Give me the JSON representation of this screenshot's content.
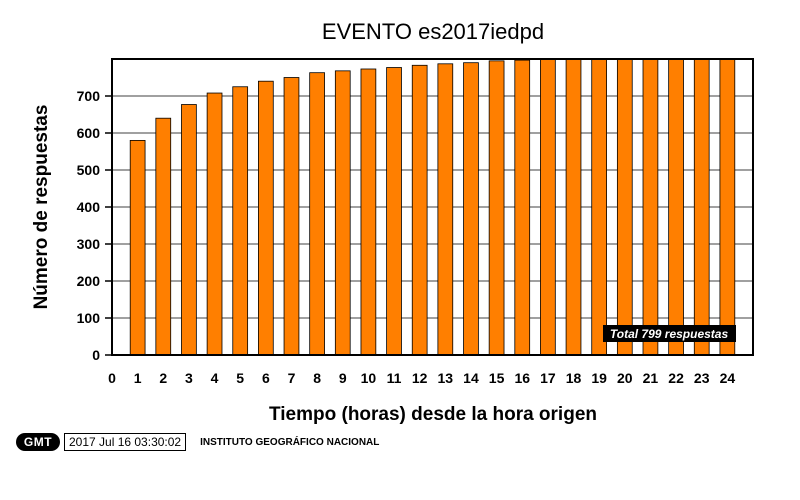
{
  "chart_data": {
    "type": "bar",
    "title": "EVENTO es2017iedpd",
    "xlabel": "Tiempo (horas) desde la hora origen",
    "ylabel": "Número de respuestas",
    "categories": [
      "1",
      "2",
      "3",
      "4",
      "5",
      "6",
      "7",
      "8",
      "9",
      "10",
      "11",
      "12",
      "13",
      "14",
      "15",
      "16",
      "17",
      "18",
      "19",
      "20",
      "21",
      "22",
      "23",
      "24"
    ],
    "values": [
      580,
      640,
      677,
      708,
      725,
      740,
      750,
      763,
      768,
      773,
      777,
      783,
      787,
      790,
      795,
      797,
      799,
      799,
      799,
      799,
      799,
      799,
      799,
      799
    ],
    "x_ticks": [
      "0",
      "1",
      "2",
      "3",
      "4",
      "5",
      "6",
      "7",
      "8",
      "9",
      "10",
      "11",
      "12",
      "13",
      "14",
      "15",
      "16",
      "17",
      "18",
      "19",
      "20",
      "21",
      "22",
      "23",
      "24"
    ],
    "y_ticks": [
      0,
      100,
      200,
      300,
      400,
      500,
      600,
      700
    ],
    "ylim": [
      0,
      800
    ],
    "xlim": [
      0,
      25
    ],
    "grid": true,
    "bar_color": "#ff7f00",
    "annotation": "Total 799 respuestas"
  },
  "footer": {
    "logo": "GMT",
    "timestamp": "2017 Jul 16 03:30:02",
    "institute": "INSTITUTO GEOGRÁFICO NACIONAL"
  }
}
